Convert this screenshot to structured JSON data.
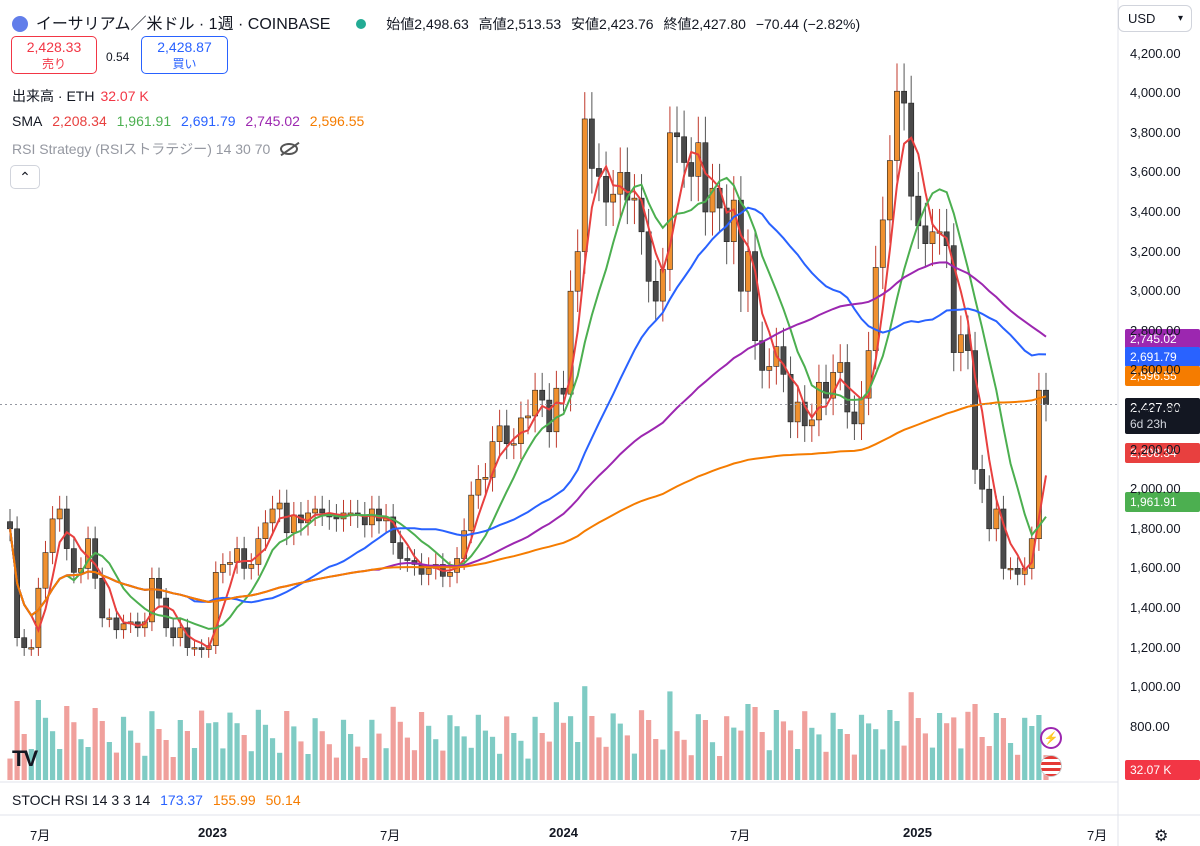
{
  "header": {
    "title": "イーサリアム／米ドル · 1週 · COINBASE",
    "open_label": "始値",
    "open": "2,498.63",
    "high_label": "高値",
    "high": "2,513.53",
    "low_label": "安値",
    "low": "2,423.76",
    "close_label": "終値",
    "close": "2,427.80",
    "change": "−70.44 (−2.82%)"
  },
  "trade": {
    "sell_price": "2,428.33",
    "sell_label": "売り",
    "spread": "0.54",
    "buy_price": "2,428.87",
    "buy_label": "買い"
  },
  "currency": "USD",
  "legend": {
    "volume_name": "出来高 · ETH",
    "volume_value": "32.07 K",
    "sma_name": "SMA",
    "sma_values": [
      "2,208.34",
      "1,961.91",
      "2,691.79",
      "2,745.02",
      "2,596.55"
    ],
    "rsi_strategy": "RSI Strategy (RSIストラテジー) 14 30 70",
    "stoch": "STOCH RSI 14 3 3 14",
    "stoch_values": [
      "173.37",
      "155.99",
      "50.14"
    ]
  },
  "axis_badges": {
    "sma4": "2,745.02",
    "sma3": "2,691.79",
    "sma5": "2,596.55",
    "last_price": "2,427.80",
    "countdown": "6d 23h",
    "sma1": "2,208.34",
    "sma2": "1,961.91",
    "volume": "32.07 K"
  },
  "colors": {
    "up": "#f0902f",
    "down": "#4a4a4a",
    "sma1": "#e8403f",
    "sma2": "#4caf50",
    "sma3": "#2962ff",
    "sma4": "#9c27b0",
    "sma5": "#f57c00",
    "vol_up": "#7fcbc4",
    "vol_down": "#f0a09c",
    "sell": "#f23645",
    "buy": "#2962ff"
  },
  "chart_data": {
    "type": "line",
    "title": "イーサリアム／米ドル · 1週 · COINBASE",
    "yaxis_ticks": [
      4200,
      4000,
      3800,
      3600,
      3400,
      3200,
      3000,
      2800,
      2600,
      2400,
      2200,
      2000,
      1800,
      1600,
      1400,
      1200,
      1000,
      800
    ],
    "ylim": [
      700,
      4300
    ],
    "xaxis_labels": [
      "7月",
      "2023",
      "7月",
      "2024",
      "7月",
      "2025",
      "7月"
    ],
    "price_weekly_close": [
      1800,
      1250,
      1200,
      1200,
      1500,
      1680,
      1850,
      1900,
      1700,
      1580,
      1600,
      1750,
      1550,
      1350,
      1350,
      1290,
      1320,
      1330,
      1300,
      1330,
      1550,
      1450,
      1300,
      1250,
      1300,
      1200,
      1200,
      1190,
      1210,
      1580,
      1620,
      1630,
      1700,
      1600,
      1620,
      1750,
      1830,
      1900,
      1930,
      1780,
      1870,
      1830,
      1880,
      1900,
      1880,
      1860,
      1850,
      1880,
      1880,
      1870,
      1820,
      1900,
      1840,
      1860,
      1730,
      1650,
      1640,
      1620,
      1570,
      1600,
      1620,
      1560,
      1580,
      1650,
      1790,
      1970,
      2050,
      2060,
      2240,
      2320,
      2230,
      2230,
      2360,
      2370,
      2500,
      2450,
      2290,
      2510,
      2480,
      3000,
      3200,
      3870,
      3620,
      3580,
      3450,
      3490,
      3600,
      3460,
      3470,
      3300,
      3050,
      2950,
      3110,
      3800,
      3780,
      3650,
      3580,
      3750,
      3400,
      3520,
      3420,
      3250,
      3460,
      3000,
      3200,
      2750,
      2600,
      2620,
      2720,
      2580,
      2340,
      2440,
      2320,
      2350,
      2540,
      2460,
      2590,
      2640,
      2390,
      2330,
      2460,
      2700,
      3120,
      3360,
      3660,
      4010,
      3950,
      3480,
      3330,
      3240,
      3300,
      3300,
      3230,
      2690,
      2780,
      2700,
      2100,
      2000,
      1800,
      1900,
      1600,
      1600,
      1570,
      1600,
      1750,
      2500,
      2427.8
    ],
    "series": [
      {
        "name": "SMA",
        "last": 2208.34
      },
      {
        "name": "SMA",
        "last": 1961.91
      },
      {
        "name": "SMA",
        "last": 2691.79
      },
      {
        "name": "SMA",
        "last": 2745.02
      },
      {
        "name": "SMA",
        "last": 2596.55
      }
    ],
    "grid": false
  }
}
